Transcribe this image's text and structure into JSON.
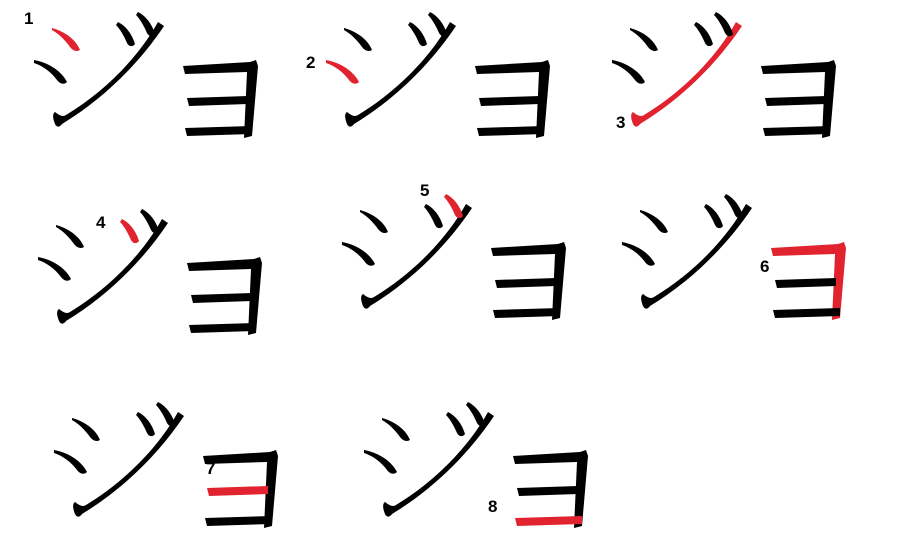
{
  "diagram": {
    "title": "",
    "word": "ジョ",
    "ink_color": "#000000",
    "highlight_color": "#e0232f",
    "steps": [
      {
        "number": "1",
        "highlighted_stroke": "ji-stroke-1"
      },
      {
        "number": "2",
        "highlighted_stroke": "ji-stroke-2"
      },
      {
        "number": "3",
        "highlighted_stroke": "ji-stroke-3"
      },
      {
        "number": "4",
        "highlighted_stroke": "ji-dakuten-1"
      },
      {
        "number": "5",
        "highlighted_stroke": "ji-dakuten-2"
      },
      {
        "number": "6",
        "highlighted_stroke": "yo-stroke-1"
      },
      {
        "number": "7",
        "highlighted_stroke": "yo-stroke-2"
      },
      {
        "number": "8",
        "highlighted_stroke": "yo-stroke-3"
      }
    ]
  }
}
